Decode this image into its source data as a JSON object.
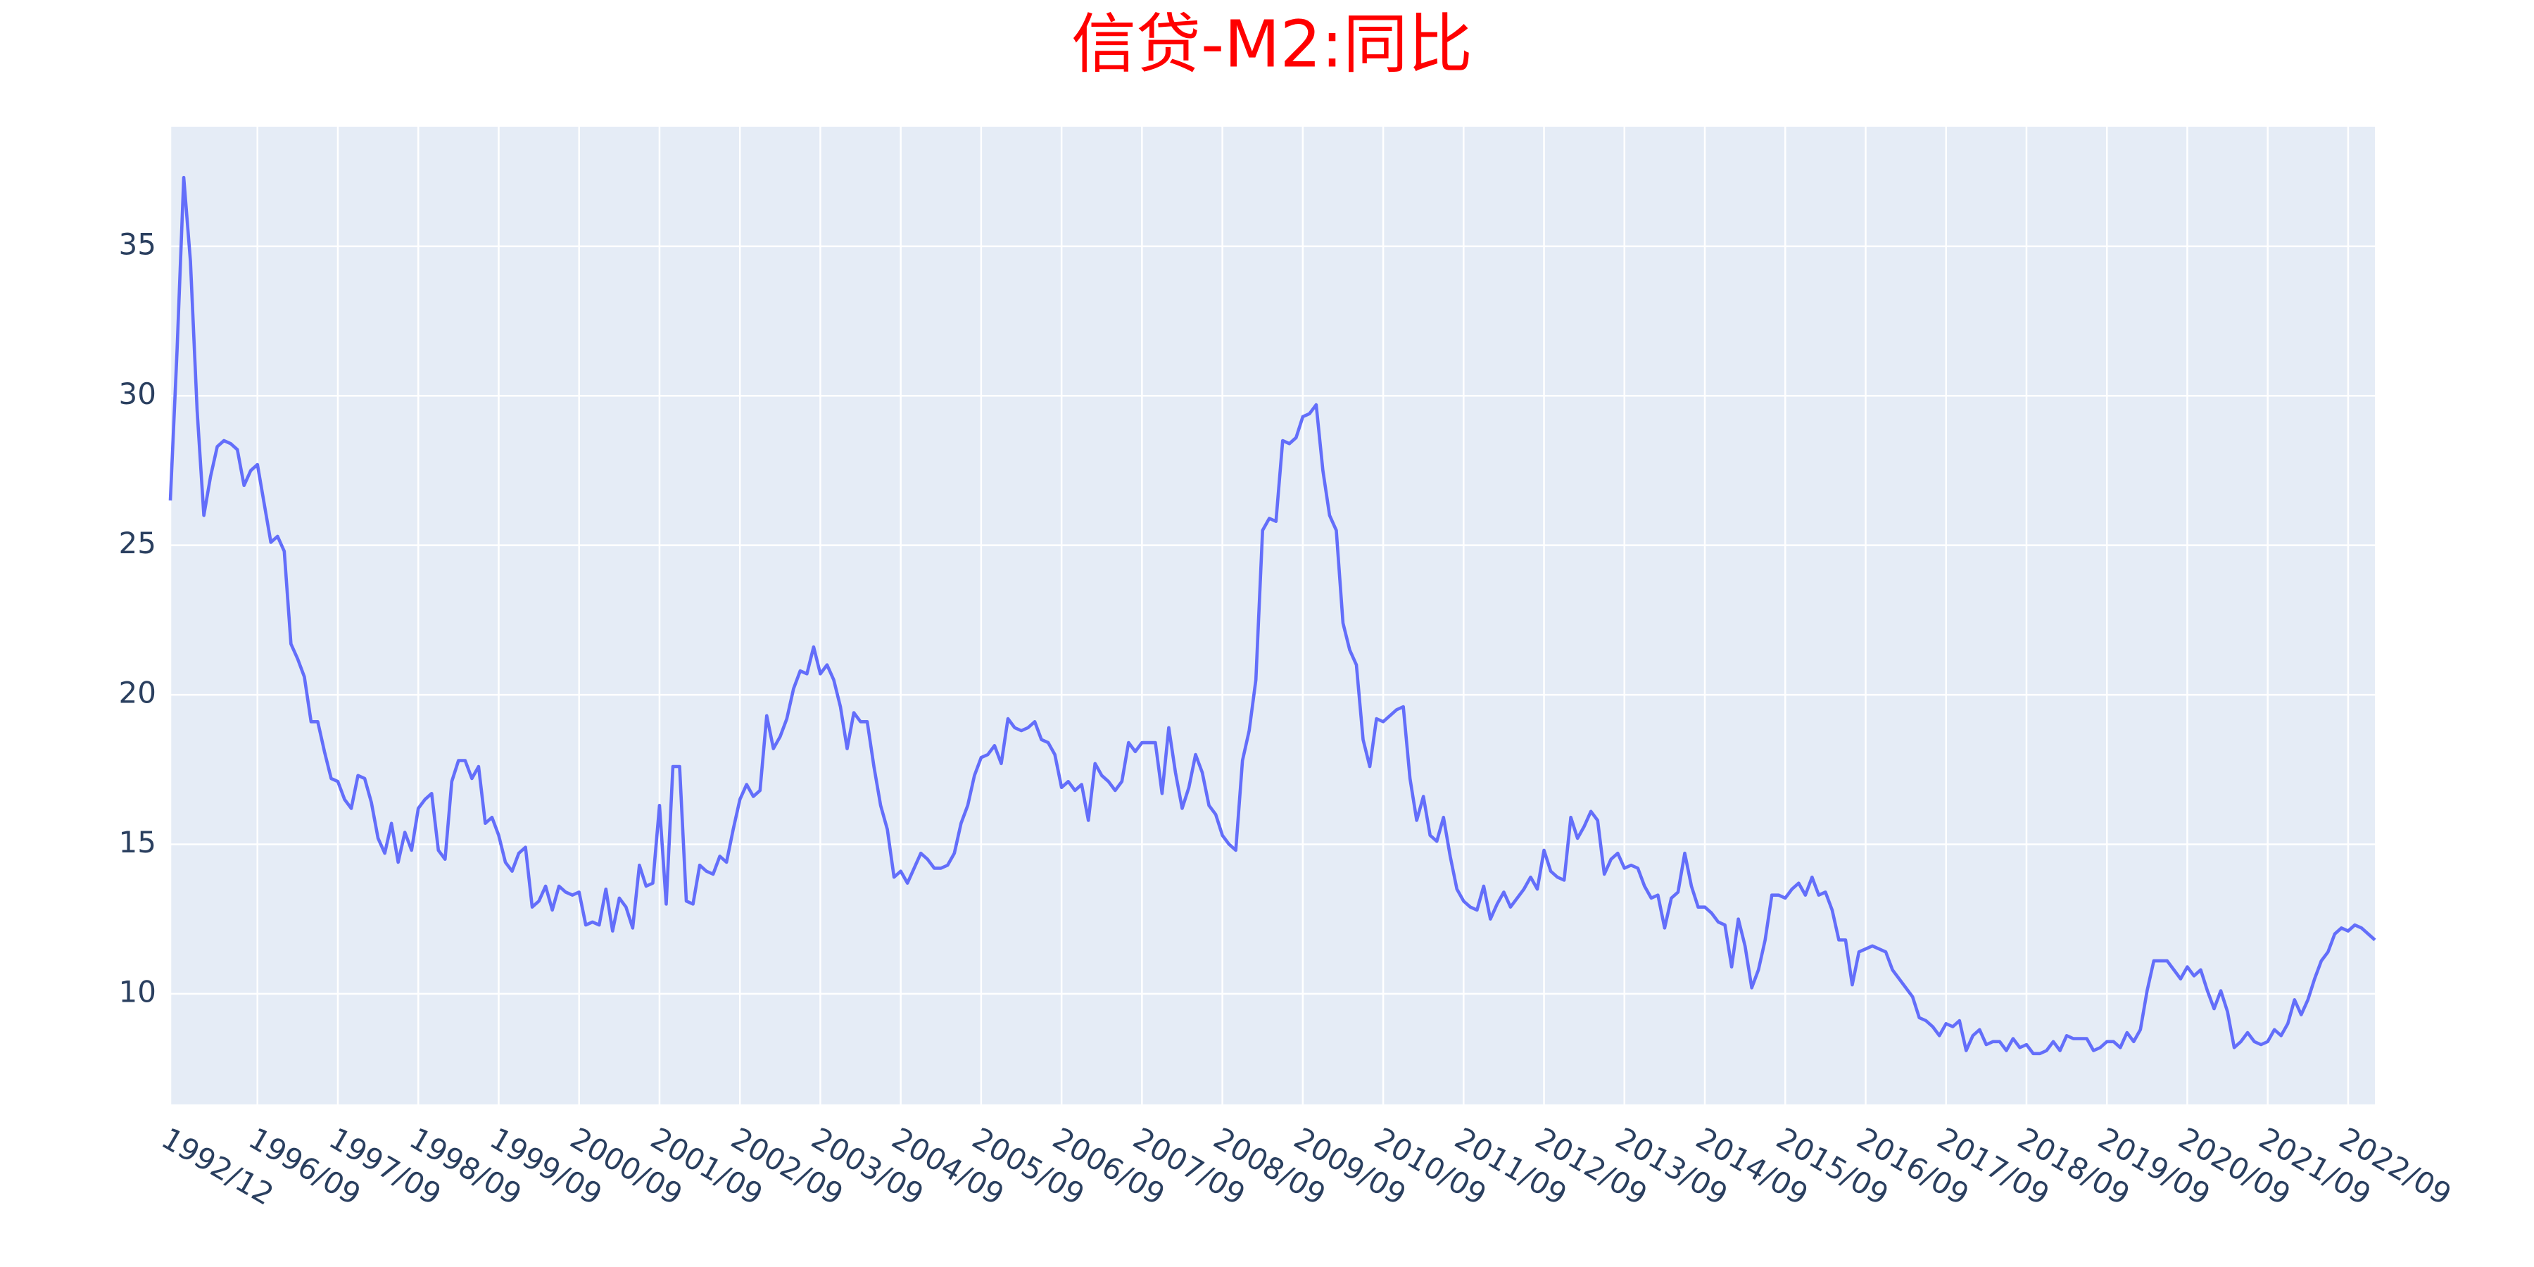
{
  "chart_data": {
    "type": "line",
    "title": "信贷-M2:同比",
    "categories": [
      "1992/12",
      null,
      null,
      null,
      null,
      null,
      null,
      null,
      null,
      null,
      null,
      null,
      null,
      "1996/09",
      null,
      null,
      null,
      null,
      null,
      null,
      null,
      null,
      null,
      null,
      null,
      "1997/09",
      null,
      null,
      null,
      null,
      null,
      null,
      null,
      null,
      null,
      null,
      null,
      "1998/09",
      null,
      null,
      null,
      null,
      null,
      null,
      null,
      null,
      null,
      null,
      null,
      "1999/09",
      null,
      null,
      null,
      null,
      null,
      null,
      null,
      null,
      null,
      null,
      null,
      "2000/09",
      null,
      null,
      null,
      null,
      null,
      null,
      null,
      null,
      null,
      null,
      null,
      "2001/09",
      null,
      null,
      null,
      null,
      null,
      null,
      null,
      null,
      null,
      null,
      null,
      "2002/09",
      null,
      null,
      null,
      null,
      null,
      null,
      null,
      null,
      null,
      null,
      null,
      "2003/09",
      null,
      null,
      null,
      null,
      null,
      null,
      null,
      null,
      null,
      null,
      null,
      "2004/09",
      null,
      null,
      null,
      null,
      null,
      null,
      null,
      null,
      null,
      null,
      null,
      "2005/09",
      null,
      null,
      null,
      null,
      null,
      null,
      null,
      null,
      null,
      null,
      null,
      "2006/09",
      null,
      null,
      null,
      null,
      null,
      null,
      null,
      null,
      null,
      null,
      null,
      "2007/09",
      null,
      null,
      null,
      null,
      null,
      null,
      null,
      null,
      null,
      null,
      null,
      "2008/09",
      null,
      null,
      null,
      null,
      null,
      null,
      null,
      null,
      null,
      null,
      null,
      "2009/09",
      null,
      null,
      null,
      null,
      null,
      null,
      null,
      null,
      null,
      null,
      null,
      "2010/09",
      null,
      null,
      null,
      null,
      null,
      null,
      null,
      null,
      null,
      null,
      null,
      "2011/09",
      null,
      null,
      null,
      null,
      null,
      null,
      null,
      null,
      null,
      null,
      null,
      "2012/09",
      null,
      null,
      null,
      null,
      null,
      null,
      null,
      null,
      null,
      null,
      null,
      "2013/09",
      null,
      null,
      null,
      null,
      null,
      null,
      null,
      null,
      null,
      null,
      null,
      "2014/09",
      null,
      null,
      null,
      null,
      null,
      null,
      null,
      null,
      null,
      null,
      null,
      "2015/09",
      null,
      null,
      null,
      null,
      null,
      null,
      null,
      null,
      null,
      null,
      null,
      "2016/09",
      null,
      null,
      null,
      null,
      null,
      null,
      null,
      null,
      null,
      null,
      null,
      "2017/09",
      null,
      null,
      null,
      null,
      null,
      null,
      null,
      null,
      null,
      null,
      null,
      "2018/09",
      null,
      null,
      null,
      null,
      null,
      null,
      null,
      null,
      null,
      null,
      null,
      "2019/09",
      null,
      null,
      null,
      null,
      null,
      null,
      null,
      null,
      null,
      null,
      null,
      "2020/09",
      null,
      null,
      null,
      null,
      null,
      null,
      null,
      null,
      null,
      null,
      null,
      "2021/09",
      null,
      null,
      null,
      null,
      null,
      null,
      null,
      null,
      null,
      null,
      null,
      "2022/09",
      null,
      null,
      null,
      null
    ],
    "values": [
      26.5,
      31.5,
      37.3,
      34.5,
      29.5,
      26.0,
      27.3,
      28.3,
      28.5,
      28.4,
      28.2,
      27.0,
      27.5,
      27.7,
      26.4,
      25.1,
      25.3,
      24.8,
      21.7,
      21.2,
      20.6,
      19.1,
      19.1,
      18.1,
      17.2,
      17.1,
      16.5,
      16.2,
      17.3,
      17.2,
      16.4,
      15.2,
      14.7,
      15.7,
      14.4,
      15.4,
      14.8,
      16.2,
      16.5,
      16.7,
      14.8,
      14.5,
      17.1,
      17.8,
      17.8,
      17.2,
      17.6,
      15.7,
      15.9,
      15.3,
      14.4,
      14.1,
      14.7,
      14.9,
      12.9,
      13.1,
      13.6,
      12.8,
      13.6,
      13.4,
      13.3,
      13.4,
      12.3,
      12.4,
      12.3,
      13.5,
      12.1,
      13.2,
      12.9,
      12.2,
      14.3,
      13.6,
      13.7,
      16.3,
      13.0,
      17.6,
      17.6,
      13.1,
      13.0,
      14.3,
      14.1,
      14.0,
      14.6,
      14.4,
      15.5,
      16.5,
      17.0,
      16.6,
      16.8,
      19.3,
      18.2,
      18.6,
      19.2,
      20.2,
      20.8,
      20.7,
      21.6,
      20.7,
      21.0,
      20.5,
      19.6,
      18.2,
      19.4,
      19.1,
      19.1,
      17.6,
      16.3,
      15.5,
      13.9,
      14.1,
      13.7,
      14.2,
      14.7,
      14.5,
      14.2,
      14.2,
      14.3,
      14.7,
      15.7,
      16.3,
      17.3,
      17.9,
      18.0,
      18.3,
      17.7,
      19.2,
      18.9,
      18.8,
      18.9,
      19.1,
      18.5,
      18.4,
      18.0,
      16.9,
      17.1,
      16.8,
      17.0,
      15.8,
      17.7,
      17.3,
      17.1,
      16.8,
      17.1,
      18.4,
      18.1,
      18.4,
      18.4,
      18.4,
      16.7,
      18.9,
      17.4,
      16.2,
      16.9,
      18.0,
      17.4,
      16.3,
      16.0,
      15.3,
      15.0,
      14.8,
      17.8,
      18.8,
      20.5,
      25.5,
      25.9,
      25.8,
      28.5,
      28.4,
      28.6,
      29.3,
      29.4,
      29.7,
      27.5,
      26.0,
      25.5,
      22.4,
      21.5,
      21.0,
      18.5,
      17.6,
      19.2,
      19.1,
      19.3,
      19.5,
      19.6,
      17.2,
      15.8,
      16.6,
      15.3,
      15.1,
      15.9,
      14.6,
      13.5,
      13.1,
      12.9,
      12.8,
      13.6,
      12.5,
      13.0,
      13.4,
      12.9,
      13.2,
      13.5,
      13.9,
      13.5,
      14.8,
      14.1,
      13.9,
      13.8,
      15.9,
      15.2,
      15.6,
      16.1,
      15.8,
      14.0,
      14.5,
      14.7,
      14.2,
      14.3,
      14.2,
      13.6,
      13.2,
      13.3,
      12.2,
      13.2,
      13.4,
      14.7,
      13.6,
      12.9,
      12.9,
      12.7,
      12.4,
      12.3,
      10.9,
      12.5,
      11.6,
      10.2,
      10.8,
      11.8,
      13.3,
      13.3,
      13.2,
      13.5,
      13.7,
      13.3,
      13.9,
      13.3,
      13.4,
      12.8,
      11.8,
      11.8,
      10.3,
      11.4,
      11.5,
      11.6,
      11.5,
      11.4,
      10.8,
      10.5,
      10.2,
      9.9,
      9.2,
      9.1,
      8.9,
      8.6,
      9.0,
      8.9,
      9.1,
      8.1,
      8.6,
      8.8,
      8.3,
      8.4,
      8.4,
      8.1,
      8.5,
      8.2,
      8.3,
      8.0,
      8.0,
      8.1,
      8.4,
      8.1,
      8.6,
      8.5,
      8.5,
      8.5,
      8.1,
      8.2,
      8.4,
      8.4,
      8.2,
      8.7,
      8.4,
      8.8,
      10.1,
      11.1,
      11.1,
      11.1,
      10.8,
      10.5,
      10.9,
      10.6,
      10.8,
      10.1,
      9.5,
      10.1,
      9.4,
      8.2,
      8.4,
      8.7,
      8.4,
      8.3,
      8.4,
      8.8,
      8.6,
      9.0,
      9.8,
      9.3,
      9.8,
      10.5,
      11.1,
      11.4,
      12.0,
      12.2,
      12.1,
      12.3,
      12.2,
      12.0,
      11.8
    ],
    "color": "#636efa",
    "ylim": [
      6.3,
      39
    ],
    "yticks": [
      10,
      15,
      20,
      25,
      30,
      35
    ],
    "grid": true
  }
}
